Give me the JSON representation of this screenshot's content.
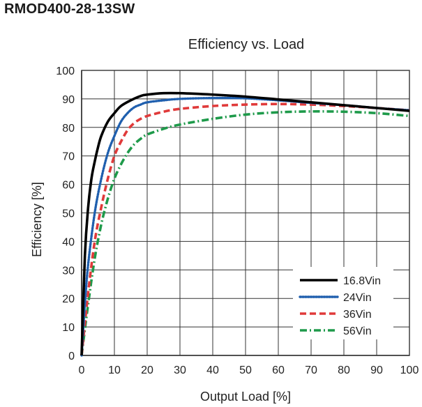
{
  "product": {
    "model": "RMOD400-28-13SW"
  },
  "colors": {
    "grid": "#333333",
    "s16_8": "#000000",
    "s24": "#1f5fae",
    "s36": "#e03a3a",
    "s56": "#1e9a4a"
  },
  "chart_data": {
    "type": "line",
    "title": "Efficiency vs. Load",
    "xlabel": "Output Load [%]",
    "ylabel": "Efficiency [%]",
    "xlim": [
      0,
      100
    ],
    "ylim": [
      0,
      100
    ],
    "xticks": [
      0,
      10,
      20,
      30,
      40,
      50,
      60,
      70,
      80,
      90,
      100
    ],
    "yticks": [
      0,
      10,
      20,
      30,
      40,
      50,
      60,
      70,
      80,
      90,
      100
    ],
    "grid": true,
    "legend_position": "bottom-right",
    "series": [
      {
        "name": "16.8Vin",
        "color": "#000000",
        "style": "solid",
        "x": [
          0,
          1,
          2,
          3,
          4,
          5,
          6,
          8,
          10,
          12,
          15,
          18,
          20,
          25,
          30,
          40,
          50,
          60,
          70,
          80,
          90,
          100
        ],
        "y": [
          0,
          35,
          52,
          62,
          68,
          73,
          77,
          82,
          85,
          87.5,
          89.5,
          91,
          91.5,
          92,
          92,
          91.5,
          90.8,
          89.8,
          88.8,
          87.8,
          86.8,
          85.8
        ]
      },
      {
        "name": "24Vin",
        "color": "#1f5fae",
        "style": "dotted",
        "x": [
          0,
          1,
          2,
          4,
          6,
          8,
          10,
          12,
          14,
          16,
          18,
          20,
          25,
          30,
          40,
          50,
          60,
          70,
          80,
          90,
          100
        ],
        "y": [
          0,
          18,
          32,
          50,
          62,
          71,
          77,
          82,
          85,
          87,
          88,
          88.8,
          89.5,
          90,
          90.3,
          90.2,
          89.5,
          88.6,
          87.8,
          86.8,
          86
        ]
      },
      {
        "name": "36Vin",
        "color": "#e03a3a",
        "style": "dashed",
        "x": [
          0,
          2,
          4,
          6,
          8,
          10,
          12,
          14,
          16,
          18,
          20,
          25,
          30,
          40,
          50,
          60,
          70,
          80,
          90,
          100
        ],
        "y": [
          0,
          22,
          40,
          52,
          62,
          70,
          75,
          79,
          81.5,
          83,
          84,
          85.5,
          86.5,
          87.5,
          88,
          88.2,
          88,
          87.5,
          86.8,
          86
        ]
      },
      {
        "name": "56Vin",
        "color": "#1e9a4a",
        "style": "dashdot",
        "x": [
          0,
          2,
          4,
          6,
          8,
          10,
          12,
          14,
          16,
          18,
          20,
          25,
          30,
          40,
          50,
          60,
          70,
          80,
          90,
          100
        ],
        "y": [
          0,
          18,
          34,
          46,
          55,
          62,
          67,
          71,
          74,
          76,
          77.5,
          79.5,
          81,
          83,
          84.5,
          85.3,
          85.6,
          85.5,
          85,
          84
        ]
      }
    ]
  }
}
